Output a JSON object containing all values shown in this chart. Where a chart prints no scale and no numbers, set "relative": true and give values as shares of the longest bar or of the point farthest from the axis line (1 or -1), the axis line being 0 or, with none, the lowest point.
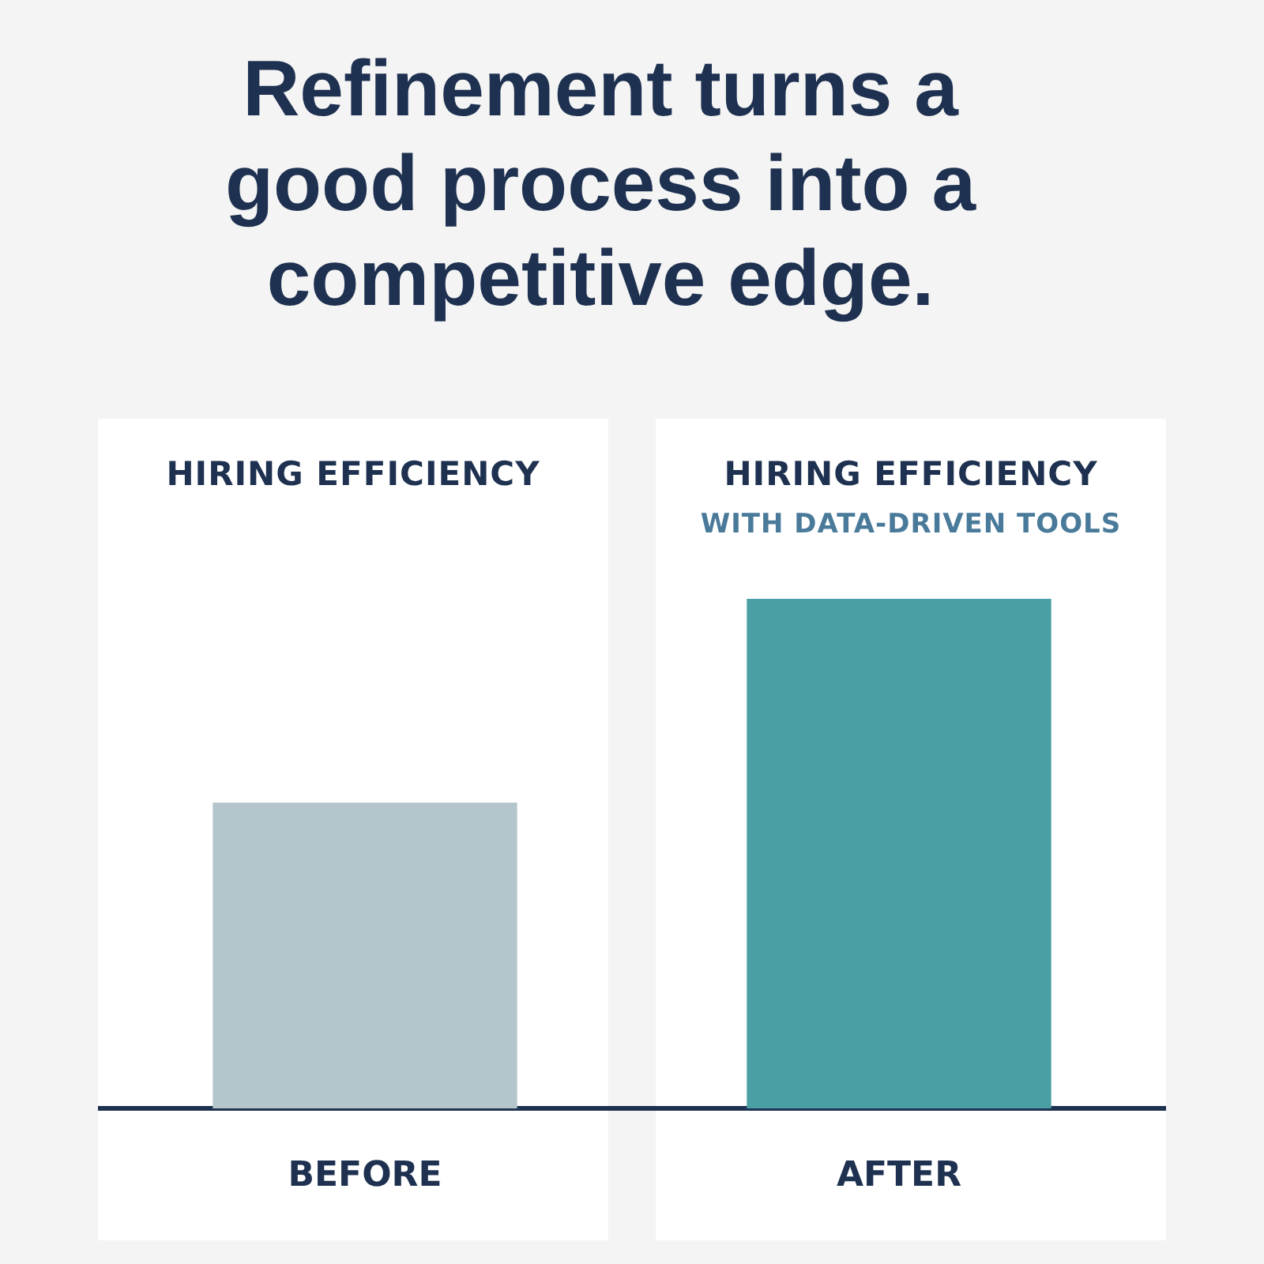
{
  "chart_data": {
    "type": "bar",
    "title": "Refinement turns a good process into a competitive edge.",
    "categories": [
      "BEFORE",
      "AFTER"
    ],
    "values": [
      0.6,
      1
    ],
    "colors": [
      "#b4c5cb",
      "#4a9fa5"
    ],
    "relative": true,
    "annotations": [
      "HIRING EFFICIENCY",
      "HIRING EFFICIENCY",
      "WITH DATA-DRIVEN TOOLS"
    ]
  }
}
